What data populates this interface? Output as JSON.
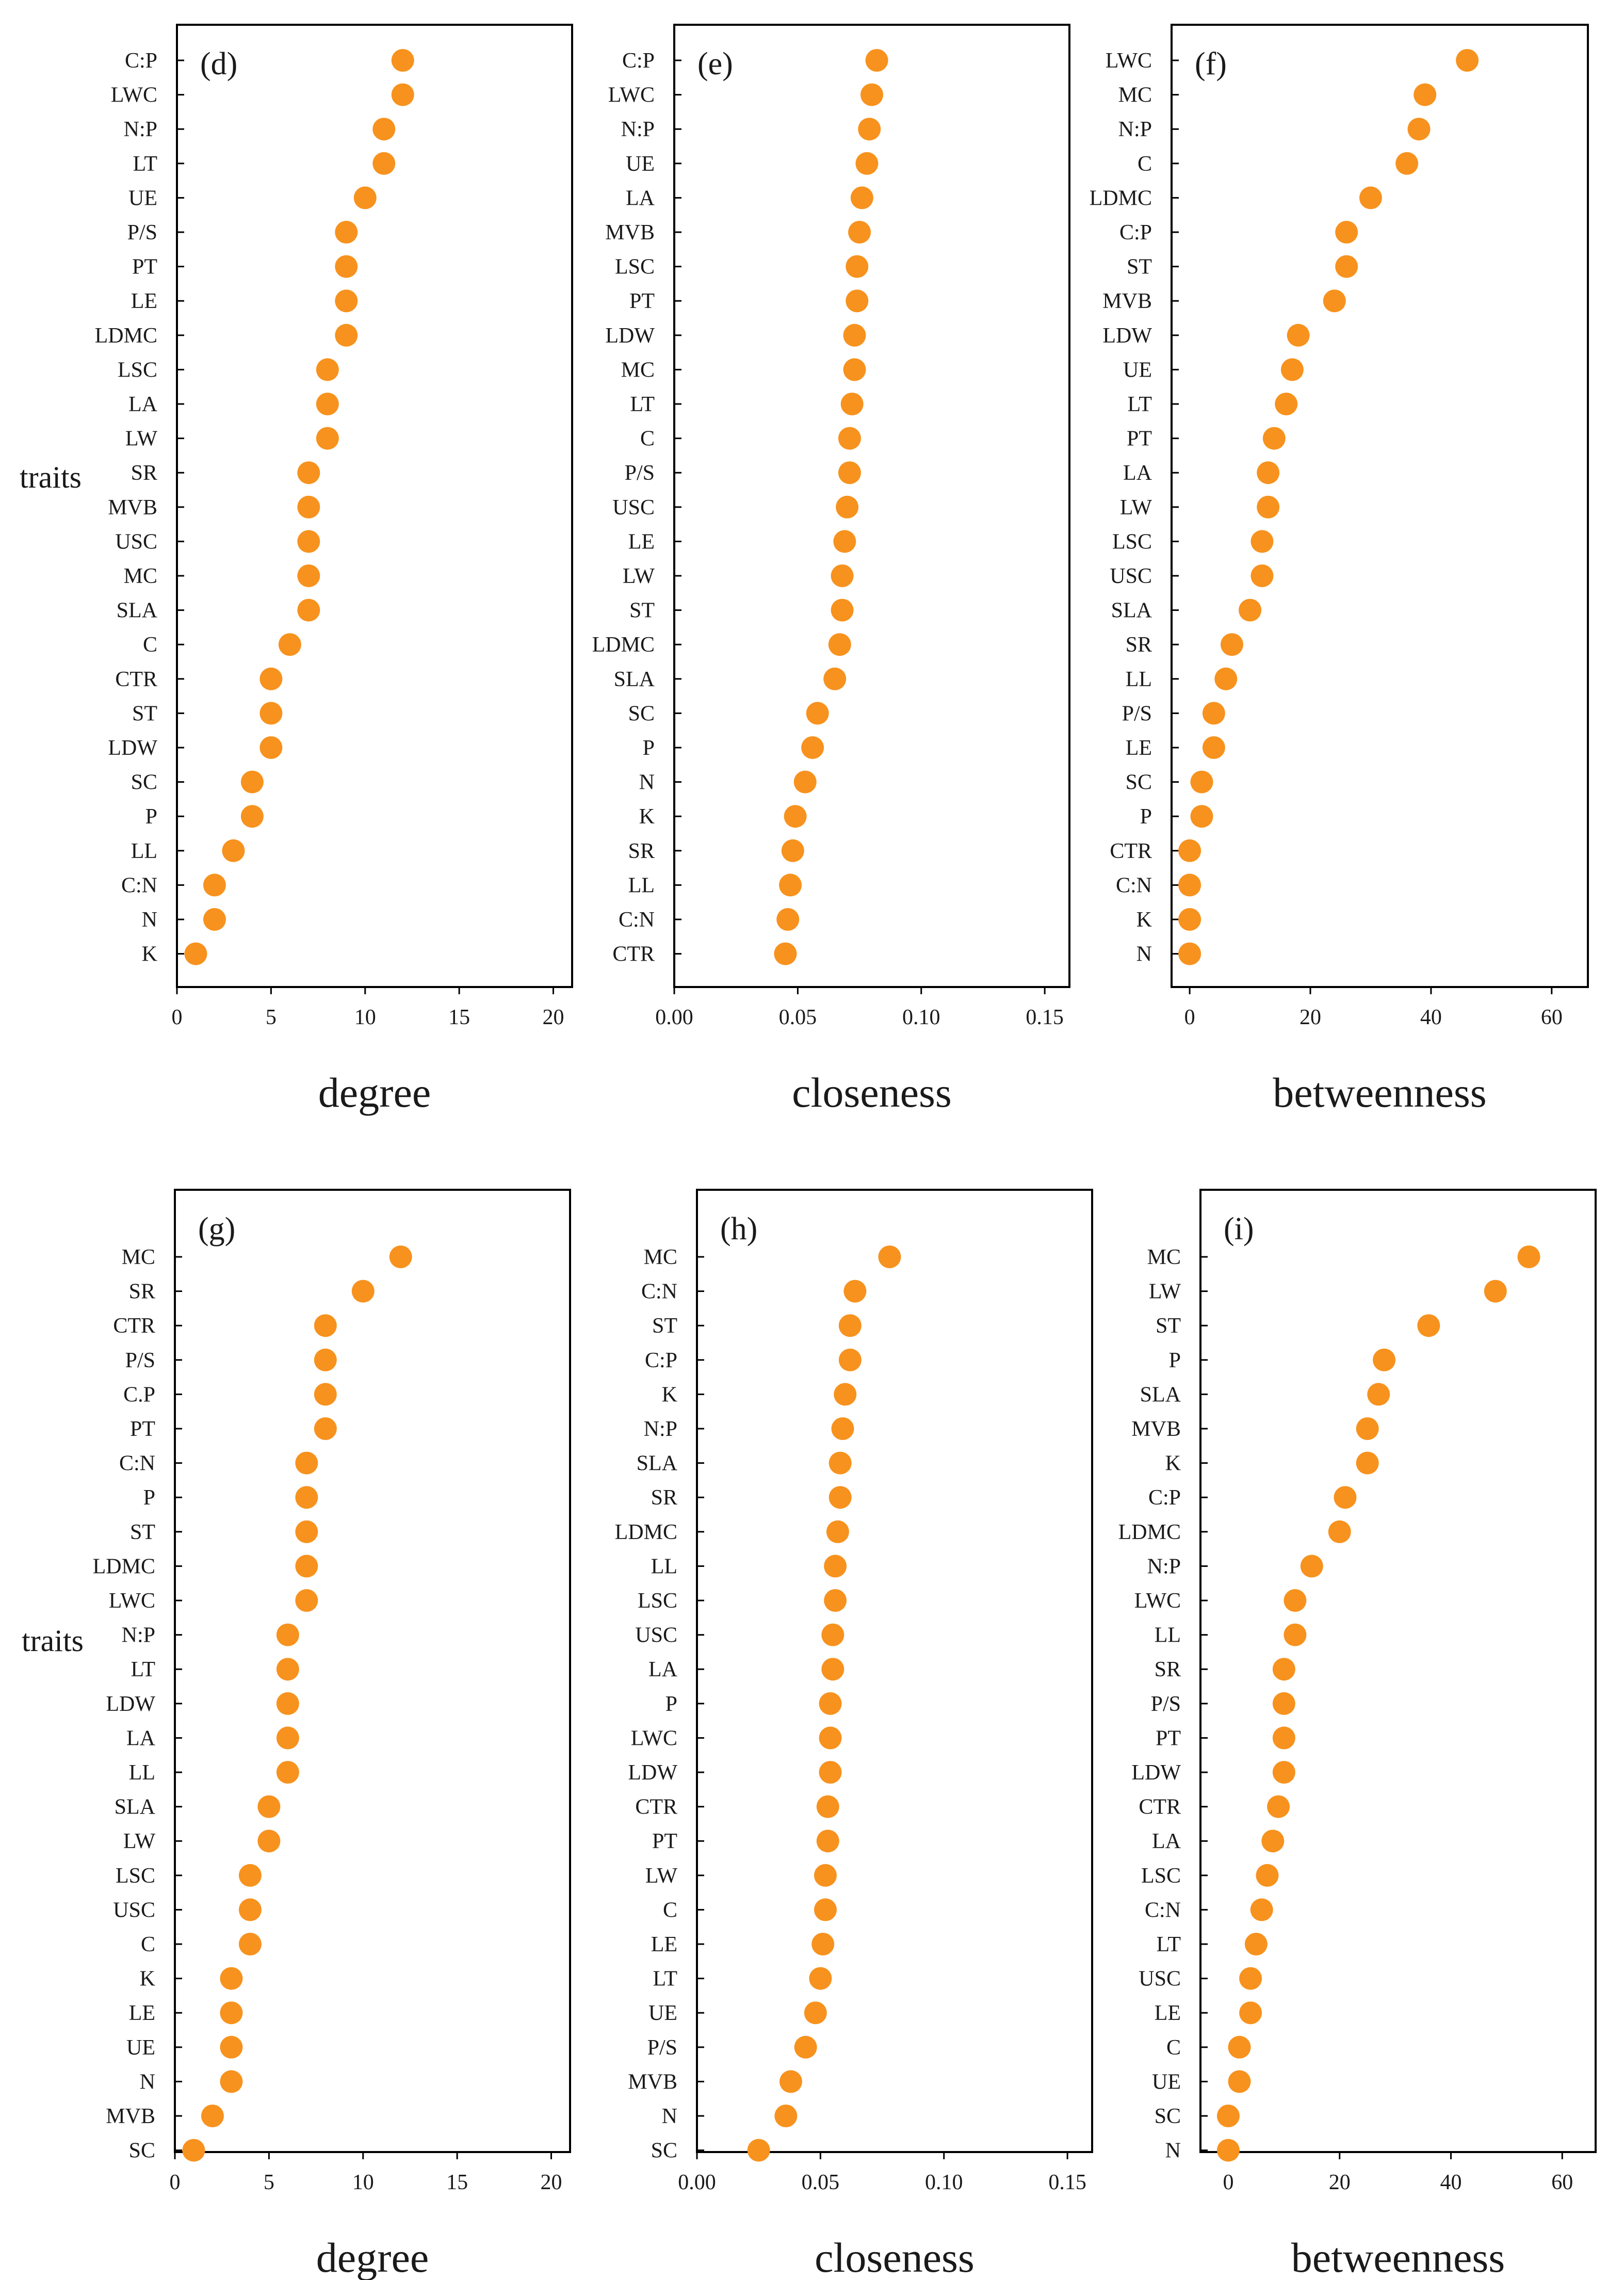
{
  "figure": {
    "y_axis_label": "traits",
    "marker_color": "#f7921e"
  },
  "chart_data": [
    {
      "type": "scatter",
      "panel": "(d)",
      "xlabel": "degree",
      "ylabel": "traits",
      "xlim": [
        0,
        21
      ],
      "xticks": [
        0,
        5,
        10,
        15,
        20
      ],
      "categories": [
        "C:P",
        "LWC",
        "N:P",
        "LT",
        "UE",
        "P/S",
        "PT",
        "LE",
        "LDMC",
        "LSC",
        "LA",
        "LW",
        "SR",
        "MVB",
        "USC",
        "MC",
        "SLA",
        "C",
        "CTR",
        "ST",
        "LDW",
        "SC",
        "P",
        "LL",
        "C:N",
        "N",
        "K"
      ],
      "values": [
        12,
        12,
        11,
        11,
        10,
        9,
        9,
        9,
        9,
        8,
        8,
        8,
        7,
        7,
        7,
        7,
        7,
        6,
        5,
        5,
        5,
        4,
        4,
        3,
        2,
        2,
        1
      ]
    },
    {
      "type": "scatter",
      "panel": "(e)",
      "xlabel": "closeness",
      "ylabel": "",
      "xlim": [
        0,
        0.16
      ],
      "xticks": [
        "0.00",
        "0.05",
        "0.10",
        "0.15"
      ],
      "categories": [
        "C:P",
        "LWC",
        "N:P",
        "UE",
        "LA",
        "MVB",
        "LSC",
        "PT",
        "LDW",
        "MC",
        "LT",
        "C",
        "P/S",
        "USC",
        "LE",
        "LW",
        "ST",
        "LDMC",
        "SLA",
        "SC",
        "P",
        "N",
        "K",
        "SR",
        "LL",
        "C:N",
        "CTR"
      ],
      "values": [
        0.082,
        0.08,
        0.079,
        0.078,
        0.076,
        0.075,
        0.074,
        0.074,
        0.073,
        0.073,
        0.072,
        0.071,
        0.071,
        0.07,
        0.069,
        0.068,
        0.068,
        0.067,
        0.065,
        0.058,
        0.056,
        0.053,
        0.049,
        0.048,
        0.047,
        0.046,
        0.045
      ]
    },
    {
      "type": "scatter",
      "panel": "(f)",
      "xlabel": "betweenness",
      "ylabel": "",
      "xlim": [
        -3,
        66
      ],
      "xticks": [
        0,
        20,
        40,
        60
      ],
      "categories": [
        "LWC",
        "MC",
        "N:P",
        "C",
        "LDMC",
        "C:P",
        "ST",
        "MVB",
        "LDW",
        "UE",
        "LT",
        "PT",
        "LA",
        "LW",
        "LSC",
        "USC",
        "SLA",
        "SR",
        "LL",
        "P/S",
        "LE",
        "SC",
        "P",
        "CTR",
        "C:N",
        "K",
        "N"
      ],
      "values": [
        46,
        39,
        38,
        36,
        30,
        26,
        26,
        24,
        18,
        17,
        16,
        14,
        13,
        13,
        12,
        12,
        10,
        7,
        6,
        4,
        4,
        2,
        2,
        0,
        0,
        0,
        0
      ]
    },
    {
      "type": "scatter",
      "panel": "(g)",
      "xlabel": "degree",
      "ylabel": "traits",
      "xlim": [
        0,
        21
      ],
      "xticks": [
        0,
        5,
        10,
        15,
        20
      ],
      "categories": [
        "MC",
        "SR",
        "CTR",
        "P/S",
        "C.P",
        "PT",
        "C:N",
        "P",
        "ST",
        "LDMC",
        "LWC",
        "N:P",
        "LT",
        "LDW",
        "LA",
        "LL",
        "SLA",
        "LW",
        "LSC",
        "USC",
        "C",
        "K",
        "LE",
        "UE",
        "N",
        "MVB",
        "SC"
      ],
      "values": [
        12,
        10,
        8,
        8,
        8,
        8,
        7,
        7,
        7,
        7,
        7,
        6,
        6,
        6,
        6,
        6,
        5,
        5,
        4,
        4,
        4,
        3,
        3,
        3,
        3,
        2,
        1
      ]
    },
    {
      "type": "scatter",
      "panel": "(h)",
      "xlabel": "closeness",
      "ylabel": "",
      "xlim": [
        0,
        0.16
      ],
      "xticks": [
        "0.00",
        "0.05",
        "0.10",
        "0.15"
      ],
      "categories": [
        "MC",
        "C:N",
        "ST",
        "C:P",
        "K",
        "N:P",
        "SLA",
        "SR",
        "LDMC",
        "LL",
        "LSC",
        "USC",
        "LA",
        "P",
        "LWC",
        "LDW",
        "CTR",
        "PT",
        "LW",
        "C",
        "LE",
        "LT",
        "UE",
        "P/S",
        "MVB",
        "N",
        "SC"
      ],
      "values": [
        0.078,
        0.064,
        0.062,
        0.062,
        0.06,
        0.059,
        0.058,
        0.058,
        0.057,
        0.056,
        0.056,
        0.055,
        0.055,
        0.054,
        0.054,
        0.054,
        0.053,
        0.053,
        0.052,
        0.052,
        0.051,
        0.05,
        0.048,
        0.044,
        0.038,
        0.036,
        0.025
      ]
    },
    {
      "type": "scatter",
      "panel": "(i)",
      "xlabel": "betweenness",
      "ylabel": "",
      "xlim": [
        -5,
        66
      ],
      "xticks": [
        0,
        20,
        40,
        60
      ],
      "categories": [
        "MC",
        "LW",
        "ST",
        "P",
        "SLA",
        "MVB",
        "K",
        "C:P",
        "LDMC",
        "N:P",
        "LWC",
        "LL",
        "SR",
        "P/S",
        "PT",
        "LDW",
        "CTR",
        "LA",
        "LSC",
        "C:N",
        "LT",
        "USC",
        "LE",
        "C",
        "UE",
        "SC",
        "N"
      ],
      "values": [
        54,
        48,
        36,
        28,
        27,
        25,
        25,
        21,
        20,
        15,
        12,
        12,
        10,
        10,
        10,
        10,
        9,
        8,
        7,
        6,
        5,
        4,
        4,
        2,
        2,
        0,
        0
      ]
    }
  ]
}
